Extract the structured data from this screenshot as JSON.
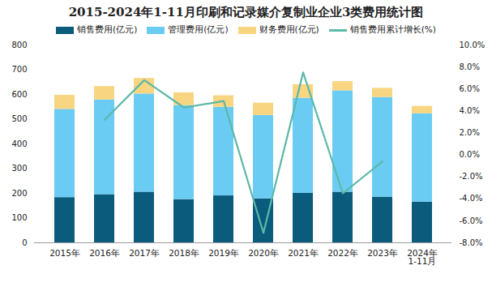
{
  "chart_data": {
    "type": "bar",
    "title": "2015-2024年1-11月印刷和记录媒介复制业企业3类费用统计图",
    "stacked": true,
    "legend": "top",
    "grid": false,
    "categories": [
      "2015年",
      "2016年",
      "2017年",
      "2018年",
      "2019年",
      "2020年",
      "2021年",
      "2022年",
      "2023年",
      "2024年\n1-11月"
    ],
    "series": [
      {
        "name": "销售费用(亿元)",
        "color": "#0b5c7c",
        "type": "bar",
        "values": [
          183,
          195,
          205,
          175,
          190,
          178,
          200,
          205,
          185,
          165
        ]
      },
      {
        "name": "管理费用(亿元)",
        "color": "#6bccf3",
        "type": "bar",
        "values": [
          357,
          383,
          397,
          380,
          358,
          337,
          385,
          410,
          403,
          357
        ]
      },
      {
        "name": "财务费用(亿元)",
        "color": "#f8d580",
        "type": "bar",
        "values": [
          57,
          54,
          63,
          52,
          47,
          50,
          55,
          37,
          37,
          30
        ]
      },
      {
        "name": "销售费用累计增长(%)",
        "color": "#5cb8a8",
        "type": "line",
        "axis": "y2",
        "values": [
          null,
          3.2,
          6.8,
          4.3,
          4.9,
          -7.1,
          7.5,
          -3.5,
          -0.6,
          null
        ]
      }
    ],
    "ylim": [
      0,
      800
    ],
    "yticks": [
      0,
      100,
      200,
      300,
      400,
      500,
      600,
      700,
      800
    ],
    "y2lim": [
      -8,
      10
    ],
    "y2ticks": [
      {
        "value": 10,
        "label": "10.0%"
      },
      {
        "value": 8,
        "label": "8.0%"
      },
      {
        "value": 6,
        "label": "6.0%"
      },
      {
        "value": 4,
        "label": "4.0%"
      },
      {
        "value": 2,
        "label": "2.0%"
      },
      {
        "value": 0,
        "label": "0.0%"
      },
      {
        "value": -2,
        "label": "-2.0%"
      },
      {
        "value": -4,
        "label": "-4.0%"
      },
      {
        "value": -6,
        "label": "-6.0%"
      },
      {
        "value": -8,
        "label": "-8.0%"
      }
    ]
  }
}
